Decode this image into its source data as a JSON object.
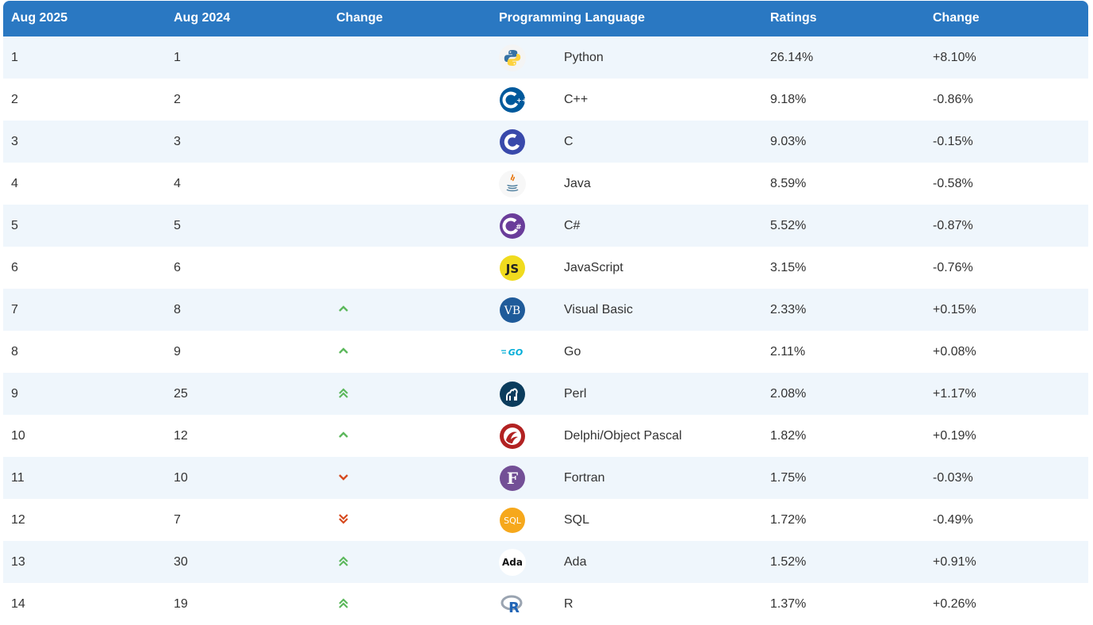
{
  "headers": {
    "col1": "Aug 2025",
    "col2": "Aug 2024",
    "col3": "Change",
    "col4": "Programming Language",
    "col5": "Ratings",
    "col6": "Change"
  },
  "colors": {
    "header_bg": "#2a78c2",
    "row_alt": "#eff6fc",
    "arrow_up": "#5cb85c",
    "arrow_down": "#d9534f"
  },
  "rows": [
    {
      "rank": "1",
      "prev": "1",
      "trend": "none",
      "language": "Python",
      "logo": "python-icon",
      "rating": "26.14%",
      "change": "+8.10%"
    },
    {
      "rank": "2",
      "prev": "2",
      "trend": "none",
      "language": "C++",
      "logo": "cpp-icon",
      "rating": "9.18%",
      "change": "-0.86%"
    },
    {
      "rank": "3",
      "prev": "3",
      "trend": "none",
      "language": "C",
      "logo": "c-icon",
      "rating": "9.03%",
      "change": "-0.15%"
    },
    {
      "rank": "4",
      "prev": "4",
      "trend": "none",
      "language": "Java",
      "logo": "java-icon",
      "rating": "8.59%",
      "change": "-0.58%"
    },
    {
      "rank": "5",
      "prev": "5",
      "trend": "none",
      "language": "C#",
      "logo": "csharp-icon",
      "rating": "5.52%",
      "change": "-0.87%"
    },
    {
      "rank": "6",
      "prev": "6",
      "trend": "none",
      "language": "JavaScript",
      "logo": "javascript-icon",
      "rating": "3.15%",
      "change": "-0.76%"
    },
    {
      "rank": "7",
      "prev": "8",
      "trend": "up",
      "language": "Visual Basic",
      "logo": "visual-basic-icon",
      "rating": "2.33%",
      "change": "+0.15%"
    },
    {
      "rank": "8",
      "prev": "9",
      "trend": "up",
      "language": "Go",
      "logo": "go-icon",
      "rating": "2.11%",
      "change": "+0.08%"
    },
    {
      "rank": "9",
      "prev": "25",
      "trend": "double-up",
      "language": "Perl",
      "logo": "perl-icon",
      "rating": "2.08%",
      "change": "+1.17%"
    },
    {
      "rank": "10",
      "prev": "12",
      "trend": "up",
      "language": "Delphi/Object Pascal",
      "logo": "delphi-icon",
      "rating": "1.82%",
      "change": "+0.19%"
    },
    {
      "rank": "11",
      "prev": "10",
      "trend": "down",
      "language": "Fortran",
      "logo": "fortran-icon",
      "rating": "1.75%",
      "change": "-0.03%"
    },
    {
      "rank": "12",
      "prev": "7",
      "trend": "double-down",
      "language": "SQL",
      "logo": "sql-icon",
      "rating": "1.72%",
      "change": "-0.49%"
    },
    {
      "rank": "13",
      "prev": "30",
      "trend": "double-up",
      "language": "Ada",
      "logo": "ada-icon",
      "rating": "1.52%",
      "change": "+0.91%"
    },
    {
      "rank": "14",
      "prev": "19",
      "trend": "double-up",
      "language": "R",
      "logo": "r-icon",
      "rating": "1.37%",
      "change": "+0.26%"
    }
  ]
}
